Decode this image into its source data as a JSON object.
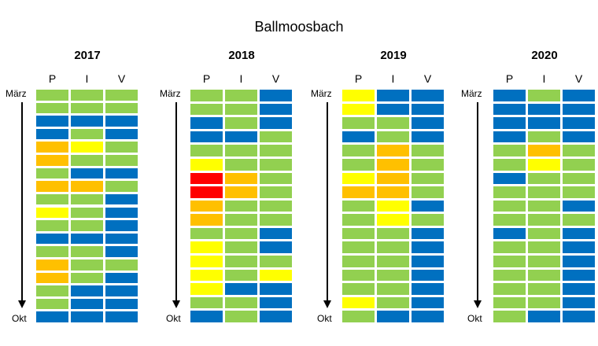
{
  "chart_data": {
    "type": "heatmap",
    "title": "Ballmoosbach",
    "columns": [
      "P",
      "I",
      "V"
    ],
    "start_label": "März",
    "end_label": "Okt",
    "colors": {
      "G": "#92D050",
      "B": "#0070C0",
      "Y": "#FFFF00",
      "O": "#FFC000",
      "R": "#FF0000"
    },
    "panels": [
      {
        "year": "2017",
        "rows": [
          "GGG",
          "GGG",
          "BBB",
          "BGB",
          "OYG",
          "OGG",
          "GBB",
          "OOG",
          "GGB",
          "YGB",
          "GGB",
          "BBB",
          "GGB",
          "OGG",
          "OGB",
          "GBB",
          "GBB",
          "BBB"
        ]
      },
      {
        "year": "2018",
        "rows": [
          "GGB",
          "GGB",
          "BGB",
          "BBG",
          "GGG",
          "YGG",
          "ROG",
          "ROG",
          "OGG",
          "OGG",
          "GGB",
          "YGB",
          "YGG",
          "YGY",
          "YBB",
          "GGB",
          "BGB"
        ]
      },
      {
        "year": "2019",
        "rows": [
          "YBB",
          "YBB",
          "GGB",
          "BGB",
          "GOG",
          "GOG",
          "YOG",
          "OOG",
          "GYB",
          "GYG",
          "GGB",
          "GGB",
          "GGB",
          "GGB",
          "GGB",
          "YGB",
          "GBB"
        ]
      },
      {
        "year": "2020",
        "rows": [
          "BGB",
          "BBB",
          "BBB",
          "BGB",
          "GOG",
          "GYG",
          "BGG",
          "GGG",
          "GGB",
          "GGG",
          "BGB",
          "GGB",
          "GGB",
          "GGB",
          "GGB",
          "GGB",
          "GBB"
        ]
      }
    ]
  }
}
